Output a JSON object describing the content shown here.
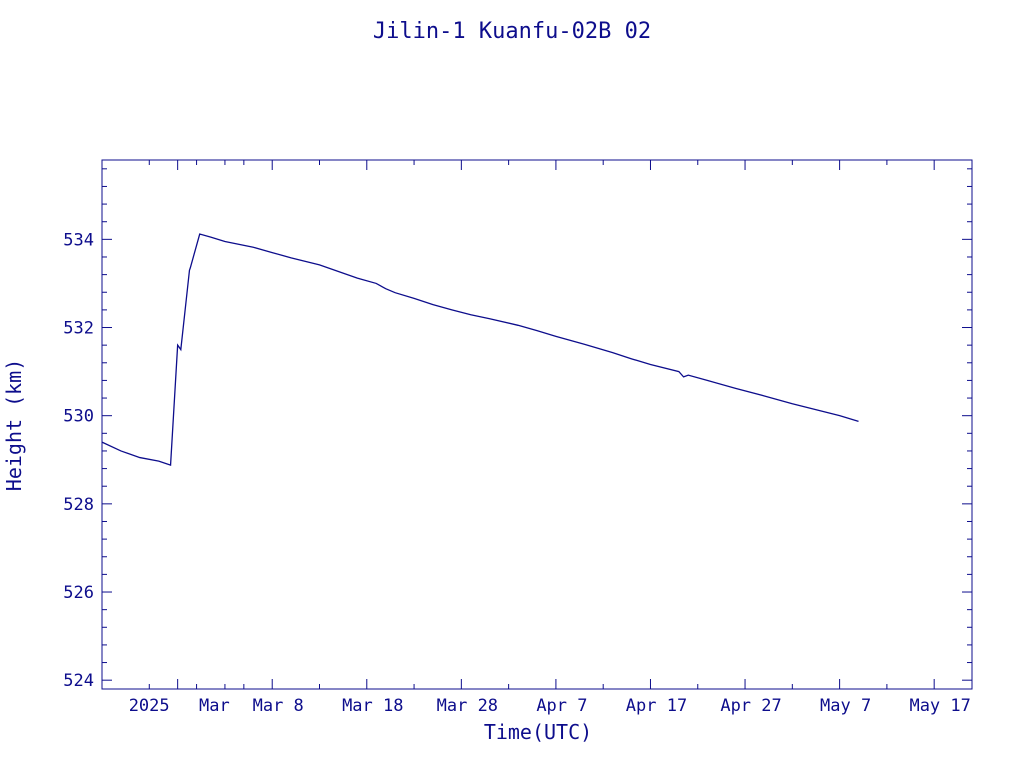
{
  "colors": {
    "ink": "#0d0d8c",
    "background": "#ffffff"
  },
  "chart_data": {
    "type": "line",
    "title": "Jilin-1 Kuanfu-02B 02",
    "xlabel": "Time(UTC)",
    "ylabel": "Height (km)",
    "x_date_range": [
      "2025-02-18",
      "2025-05-21"
    ],
    "ylim": [
      523.8,
      535.8
    ],
    "x_ticks": [
      {
        "date": "2025-02-26",
        "label": "2025"
      },
      {
        "date": "2025-03-08",
        "label": "Mar 8"
      },
      {
        "date": "2025-03-18",
        "label": "Mar 18"
      },
      {
        "date": "2025-03-28",
        "label": "Mar 28"
      },
      {
        "date": "2025-04-07",
        "label": "Apr 7"
      },
      {
        "date": "2025-04-17",
        "label": "Apr 17"
      },
      {
        "date": "2025-04-27",
        "label": "Apr 27"
      },
      {
        "date": "2025-05-07",
        "label": "May 7"
      },
      {
        "date": "2025-05-17",
        "label": "May 17"
      }
    ],
    "x_minor_ticks": [
      "2025-02-23",
      "2025-02-28",
      "2025-03-03",
      "2025-03-05",
      "2025-03-13",
      "2025-03-23",
      "2025-04-02",
      "2025-04-12",
      "2025-04-22",
      "2025-05-02",
      "2025-05-12"
    ],
    "x_extra_labels": [
      {
        "date": "2025-03-01",
        "label": "Mar"
      }
    ],
    "y_ticks": [
      524,
      526,
      528,
      530,
      532,
      534
    ],
    "y_minor_step": 0.4,
    "grid": false,
    "series": [
      {
        "points": [
          [
            "2025-02-18",
            529.4
          ],
          [
            "2025-02-20",
            529.2
          ],
          [
            "2025-02-22",
            529.05
          ],
          [
            "2025-02-24",
            528.97
          ],
          [
            "2025-02-25T06:00",
            528.88
          ],
          [
            "2025-02-26",
            531.6
          ],
          [
            "2025-02-26T08:00",
            531.5
          ],
          [
            "2025-02-27T06:00",
            533.3
          ],
          [
            "2025-02-27T08:00",
            533.35
          ],
          [
            "2025-02-28T08:00",
            534.12
          ],
          [
            "2025-03-01T12:00",
            534.05
          ],
          [
            "2025-03-03",
            533.95
          ],
          [
            "2025-03-06",
            533.82
          ],
          [
            "2025-03-08",
            533.7
          ],
          [
            "2025-03-10",
            533.58
          ],
          [
            "2025-03-13",
            533.42
          ],
          [
            "2025-03-15",
            533.27
          ],
          [
            "2025-03-17",
            533.12
          ],
          [
            "2025-03-19",
            533.0
          ],
          [
            "2025-03-20",
            532.88
          ],
          [
            "2025-03-21",
            532.79
          ],
          [
            "2025-03-23",
            532.66
          ],
          [
            "2025-03-25",
            532.52
          ],
          [
            "2025-03-27",
            532.4
          ],
          [
            "2025-03-29",
            532.29
          ],
          [
            "2025-03-31",
            532.2
          ],
          [
            "2025-04-03",
            532.05
          ],
          [
            "2025-04-05",
            531.93
          ],
          [
            "2025-04-07",
            531.8
          ],
          [
            "2025-04-10",
            531.62
          ],
          [
            "2025-04-13",
            531.43
          ],
          [
            "2025-04-15",
            531.29
          ],
          [
            "2025-04-17",
            531.16
          ],
          [
            "2025-04-20",
            531.0
          ],
          [
            "2025-04-20T12:00",
            530.88
          ],
          [
            "2025-04-21",
            530.92
          ],
          [
            "2025-04-23",
            530.8
          ],
          [
            "2025-04-26",
            530.62
          ],
          [
            "2025-04-29",
            530.45
          ],
          [
            "2025-05-02",
            530.27
          ],
          [
            "2025-05-05",
            530.11
          ],
          [
            "2025-05-07",
            530.0
          ],
          [
            "2025-05-09",
            529.87
          ]
        ]
      }
    ]
  }
}
